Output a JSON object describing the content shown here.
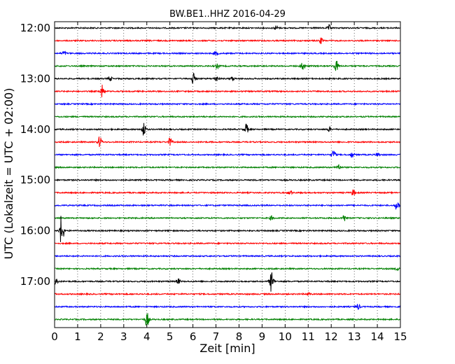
{
  "chart_data": {
    "type": "line",
    "title": "BW.BE1..HHZ 2016-04-29",
    "xlabel": "Zeit  [min]",
    "ylabel": "UTC (Lokalzeit = UTC + 02:00)",
    "xlim": [
      0,
      15
    ],
    "x_ticks": [
      "0",
      "1",
      "2",
      "3",
      "4",
      "5",
      "6",
      "7",
      "8",
      "9",
      "10",
      "11",
      "12",
      "13",
      "14",
      "15"
    ],
    "y_tick_labels": [
      "12:00",
      "13:00",
      "14:00",
      "15:00",
      "16:00",
      "17:00"
    ],
    "grid": "vertical dotted",
    "trace_colors": [
      "#000000",
      "#ff0000",
      "#0000ff",
      "#008000"
    ],
    "traces": [
      {
        "start": "12:00",
        "events": [
          {
            "t": 9.6,
            "amp": 3
          },
          {
            "t": 11.9,
            "amp": 4
          }
        ]
      },
      {
        "start": "12:15",
        "events": [
          {
            "t": 11.55,
            "amp": 4
          }
        ]
      },
      {
        "start": "12:30",
        "events": [
          {
            "t": 0.4,
            "amp": 3
          },
          {
            "t": 7.0,
            "amp": 3
          }
        ]
      },
      {
        "start": "12:45",
        "events": [
          {
            "t": 7.05,
            "amp": 3
          },
          {
            "t": 10.75,
            "amp": 8
          },
          {
            "t": 12.2,
            "amp": 9
          }
        ]
      },
      {
        "start": "13:00",
        "events": [
          {
            "t": 2.4,
            "amp": 3
          },
          {
            "t": 6.0,
            "amp": 8
          },
          {
            "t": 7.0,
            "amp": 4
          },
          {
            "t": 7.7,
            "amp": 3
          }
        ]
      },
      {
        "start": "13:15",
        "events": [
          {
            "t": 2.05,
            "amp": 9
          }
        ]
      },
      {
        "start": "13:30",
        "events": []
      },
      {
        "start": "13:45",
        "events": []
      },
      {
        "start": "14:00",
        "events": [
          {
            "t": 3.85,
            "amp": 12
          },
          {
            "t": 8.3,
            "amp": 8
          },
          {
            "t": 11.9,
            "amp": 3
          }
        ]
      },
      {
        "start": "14:15",
        "events": [
          {
            "t": 1.95,
            "amp": 8
          },
          {
            "t": 5.0,
            "amp": 6
          }
        ]
      },
      {
        "start": "14:30",
        "events": [
          {
            "t": 12.1,
            "amp": 6
          },
          {
            "t": 12.9,
            "amp": 4
          },
          {
            "t": 14.0,
            "amp": 3
          }
        ]
      },
      {
        "start": "14:45",
        "events": [
          {
            "t": 12.3,
            "amp": 5
          }
        ]
      },
      {
        "start": "15:00",
        "events": []
      },
      {
        "start": "15:15",
        "events": [
          {
            "t": 10.2,
            "amp": 4
          },
          {
            "t": 12.95,
            "amp": 4
          }
        ]
      },
      {
        "start": "15:30",
        "events": [
          {
            "t": 14.85,
            "amp": 7
          }
        ]
      },
      {
        "start": "15:45",
        "events": [
          {
            "t": 9.4,
            "amp": 3
          },
          {
            "t": 12.55,
            "amp": 5
          }
        ]
      },
      {
        "start": "16:00",
        "events": [
          {
            "t": 0.3,
            "amp": 24
          }
        ]
      },
      {
        "start": "16:15",
        "events": []
      },
      {
        "start": "16:30",
        "events": []
      },
      {
        "start": "16:45",
        "events": [
          {
            "t": 14.85,
            "amp": 3
          }
        ]
      },
      {
        "start": "17:00",
        "events": [
          {
            "t": 0.05,
            "amp": 6
          },
          {
            "t": 5.35,
            "amp": 4
          },
          {
            "t": 9.4,
            "amp": 15
          }
        ]
      },
      {
        "start": "17:15",
        "events": [
          {
            "t": 11.0,
            "amp": 2
          }
        ]
      },
      {
        "start": "17:30",
        "events": [
          {
            "t": 13.15,
            "amp": 4
          }
        ]
      },
      {
        "start": "17:45",
        "events": [
          {
            "t": 4.0,
            "amp": 11
          }
        ]
      }
    ]
  }
}
